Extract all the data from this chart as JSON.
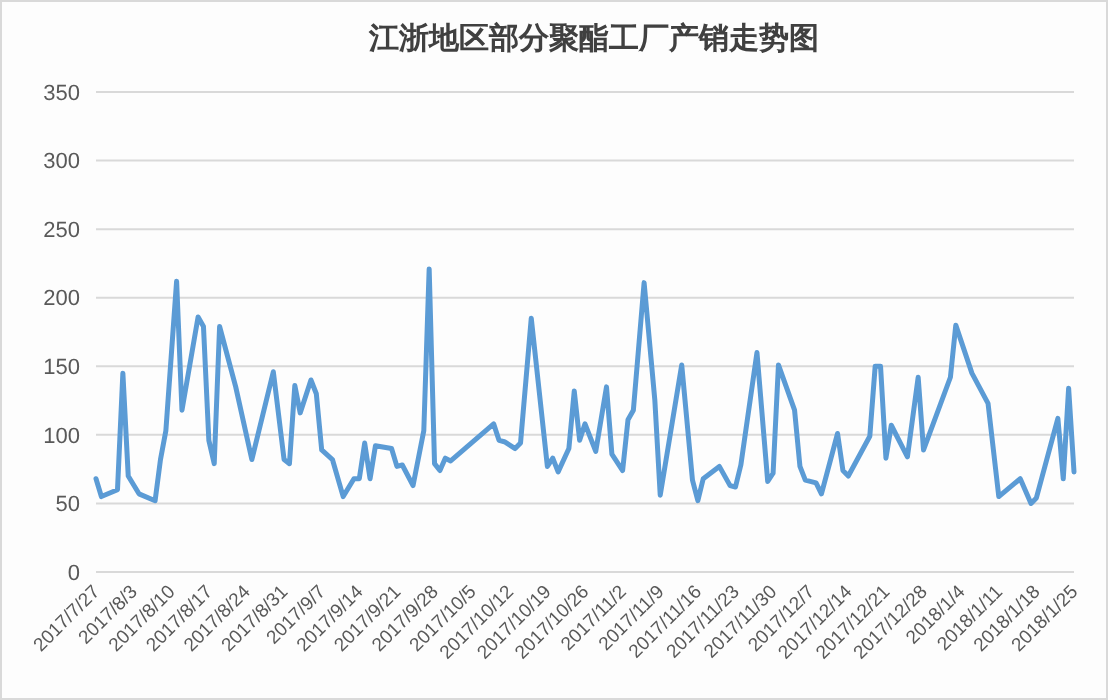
{
  "chart_data": {
    "type": "line",
    "title": "江浙地区部分聚酯工厂产销走势图",
    "x": [
      "2017-07-27",
      "2017-07-28",
      "2017-07-31",
      "2017-08-01",
      "2017-08-02",
      "2017-08-04",
      "2017-08-07",
      "2017-08-08",
      "2017-08-09",
      "2017-08-11",
      "2017-08-12",
      "2017-08-15",
      "2017-08-16",
      "2017-08-17",
      "2017-08-18",
      "2017-08-19",
      "2017-08-22",
      "2017-08-25",
      "2017-08-29",
      "2017-08-31",
      "2017-09-01",
      "2017-09-02",
      "2017-09-03",
      "2017-09-05",
      "2017-09-06",
      "2017-09-07",
      "2017-09-09",
      "2017-09-11",
      "2017-09-13",
      "2017-09-14",
      "2017-09-15",
      "2017-09-16",
      "2017-09-17",
      "2017-09-20",
      "2017-09-21",
      "2017-09-22",
      "2017-09-24",
      "2017-09-26",
      "2017-09-27",
      "2017-09-28",
      "2017-09-29",
      "2017-09-30",
      "2017-10-01",
      "2017-10-09",
      "2017-10-10",
      "2017-10-11",
      "2017-10-13",
      "2017-10-14",
      "2017-10-16",
      "2017-10-19",
      "2017-10-20",
      "2017-10-21",
      "2017-10-23",
      "2017-10-24",
      "2017-10-25",
      "2017-10-26",
      "2017-10-28",
      "2017-10-30",
      "2017-10-31",
      "2017-11-02",
      "2017-11-03",
      "2017-11-04",
      "2017-11-06",
      "2017-11-08",
      "2017-11-09",
      "2017-11-13",
      "2017-11-15",
      "2017-11-16",
      "2017-11-17",
      "2017-11-20",
      "2017-11-22",
      "2017-11-23",
      "2017-11-24",
      "2017-11-27",
      "2017-11-29",
      "2017-11-30",
      "2017-12-01",
      "2017-12-04",
      "2017-12-05",
      "2017-12-06",
      "2017-12-08",
      "2017-12-09",
      "2017-12-12",
      "2017-12-13",
      "2017-12-14",
      "2017-12-18",
      "2017-12-19",
      "2017-12-20",
      "2017-12-21",
      "2017-12-22",
      "2017-12-25",
      "2017-12-27",
      "2017-12-28",
      "2018-01-02",
      "2018-01-03",
      "2018-01-06",
      "2018-01-09",
      "2018-01-11",
      "2018-01-15",
      "2018-01-17",
      "2018-01-18",
      "2018-01-22",
      "2018-01-23",
      "2018-01-24",
      "2018-01-25"
    ],
    "series": [
      {
        "color": "#5b9bd5",
        "values": [
          68,
          55,
          60,
          145,
          70,
          57,
          52,
          82,
          103,
          212,
          118,
          186,
          179,
          96,
          79,
          179,
          135,
          82,
          146,
          82,
          79,
          136,
          116,
          140,
          130,
          89,
          82,
          55,
          68,
          68,
          94,
          68,
          92,
          90,
          77,
          78,
          63,
          103,
          221,
          79,
          74,
          83,
          81,
          108,
          96,
          95,
          90,
          94,
          185,
          77,
          83,
          73,
          90,
          132,
          96,
          108,
          88,
          135,
          86,
          74,
          111,
          118,
          211,
          125,
          56,
          151,
          67,
          52,
          68,
          77,
          63,
          62,
          78,
          160,
          66,
          72,
          151,
          118,
          77,
          67,
          65,
          57,
          101,
          74,
          70,
          99,
          150,
          150,
          83,
          107,
          84,
          142,
          89,
          142,
          180,
          145,
          123,
          55,
          68,
          50,
          54,
          112,
          68,
          134,
          73
        ]
      }
    ],
    "xlim": [
      "2017-07-27",
      "2018-01-25"
    ],
    "xticks": [
      {
        "value": "2017-07-27",
        "label": "2017/7/27"
      },
      {
        "value": "2017-08-03",
        "label": "2017/8/3"
      },
      {
        "value": "2017-08-10",
        "label": "2017/8/10"
      },
      {
        "value": "2017-08-17",
        "label": "2017/8/17"
      },
      {
        "value": "2017-08-24",
        "label": "2017/8/24"
      },
      {
        "value": "2017-08-31",
        "label": "2017/8/31"
      },
      {
        "value": "2017-09-07",
        "label": "2017/9/7"
      },
      {
        "value": "2017-09-14",
        "label": "2017/9/14"
      },
      {
        "value": "2017-09-21",
        "label": "2017/9/21"
      },
      {
        "value": "2017-09-28",
        "label": "2017/9/28"
      },
      {
        "value": "2017-10-05",
        "label": "2017/10/5"
      },
      {
        "value": "2017-10-12",
        "label": "2017/10/12"
      },
      {
        "value": "2017-10-19",
        "label": "2017/10/19"
      },
      {
        "value": "2017-10-26",
        "label": "2017/10/26"
      },
      {
        "value": "2017-11-02",
        "label": "2017/11/2"
      },
      {
        "value": "2017-11-09",
        "label": "2017/11/9"
      },
      {
        "value": "2017-11-16",
        "label": "2017/11/16"
      },
      {
        "value": "2017-11-23",
        "label": "2017/11/23"
      },
      {
        "value": "2017-11-30",
        "label": "2017/11/30"
      },
      {
        "value": "2017-12-07",
        "label": "2017/12/7"
      },
      {
        "value": "2017-12-14",
        "label": "2017/12/14"
      },
      {
        "value": "2017-12-21",
        "label": "2017/12/21"
      },
      {
        "value": "2017-12-28",
        "label": "2017/12/28"
      },
      {
        "value": "2018-01-04",
        "label": "2018/1/4"
      },
      {
        "value": "2018-01-11",
        "label": "2018/1/11"
      },
      {
        "value": "2018-01-18",
        "label": "2018/1/18"
      },
      {
        "value": "2018-01-25",
        "label": "2018/1/25"
      }
    ],
    "ylim": [
      0,
      350
    ],
    "yticks": [
      0,
      50,
      100,
      150,
      200,
      250,
      300,
      350
    ],
    "grid": "y"
  }
}
